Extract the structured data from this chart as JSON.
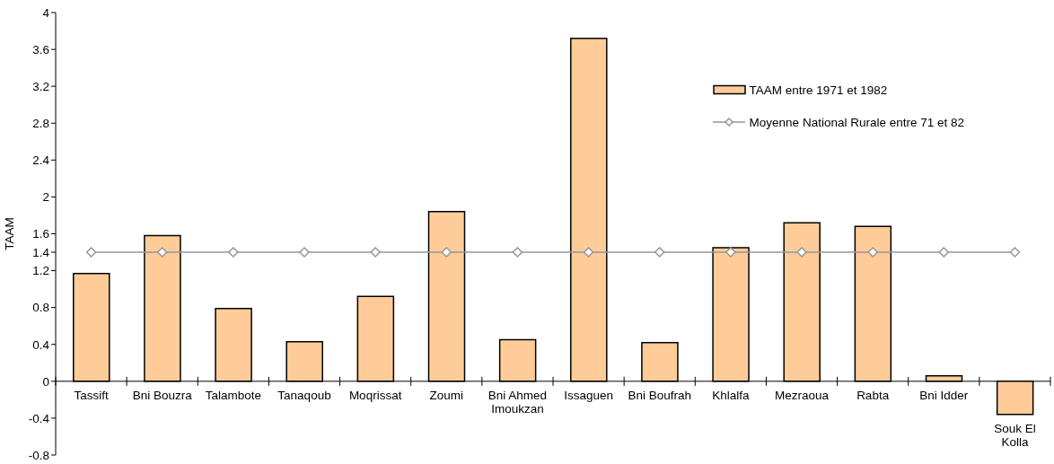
{
  "chart_data": {
    "type": "bar",
    "ylabel": "TAAM",
    "categories": [
      "Tassift",
      "Bni Bouzra",
      "Talambote",
      "Tanaqoub",
      "Moqrissat",
      "Zoumi",
      "Bni Ahmed Imoukzan",
      "Issaguen",
      "Bni Boufrah",
      "Khlalfa",
      "Mezraoua",
      "Rabta",
      "Bni Idder",
      "Souk El Kolla"
    ],
    "series": [
      {
        "name": "TAAM entre 1971 et 1982",
        "color": "#ffcc99",
        "values": [
          1.17,
          1.58,
          0.79,
          0.43,
          0.92,
          1.84,
          0.45,
          3.72,
          0.42,
          1.45,
          1.72,
          1.68,
          0.06,
          -0.36
        ]
      },
      {
        "name": "Moyenne National Rurale entre 71 et 82",
        "type": "line",
        "color": "#969696",
        "marker": "diamond",
        "values": [
          1.4,
          1.4,
          1.4,
          1.4,
          1.4,
          1.4,
          1.4,
          1.4,
          1.4,
          1.4,
          1.4,
          1.4,
          1.4,
          1.4
        ]
      }
    ],
    "ylim": [
      -0.8,
      4
    ],
    "yticks": [
      -0.8,
      -0.4,
      0,
      0.4,
      0.8,
      1.2,
      1.4,
      1.6,
      2,
      2.4,
      2.8,
      3.2,
      3.6,
      4
    ],
    "legend": "top right"
  }
}
